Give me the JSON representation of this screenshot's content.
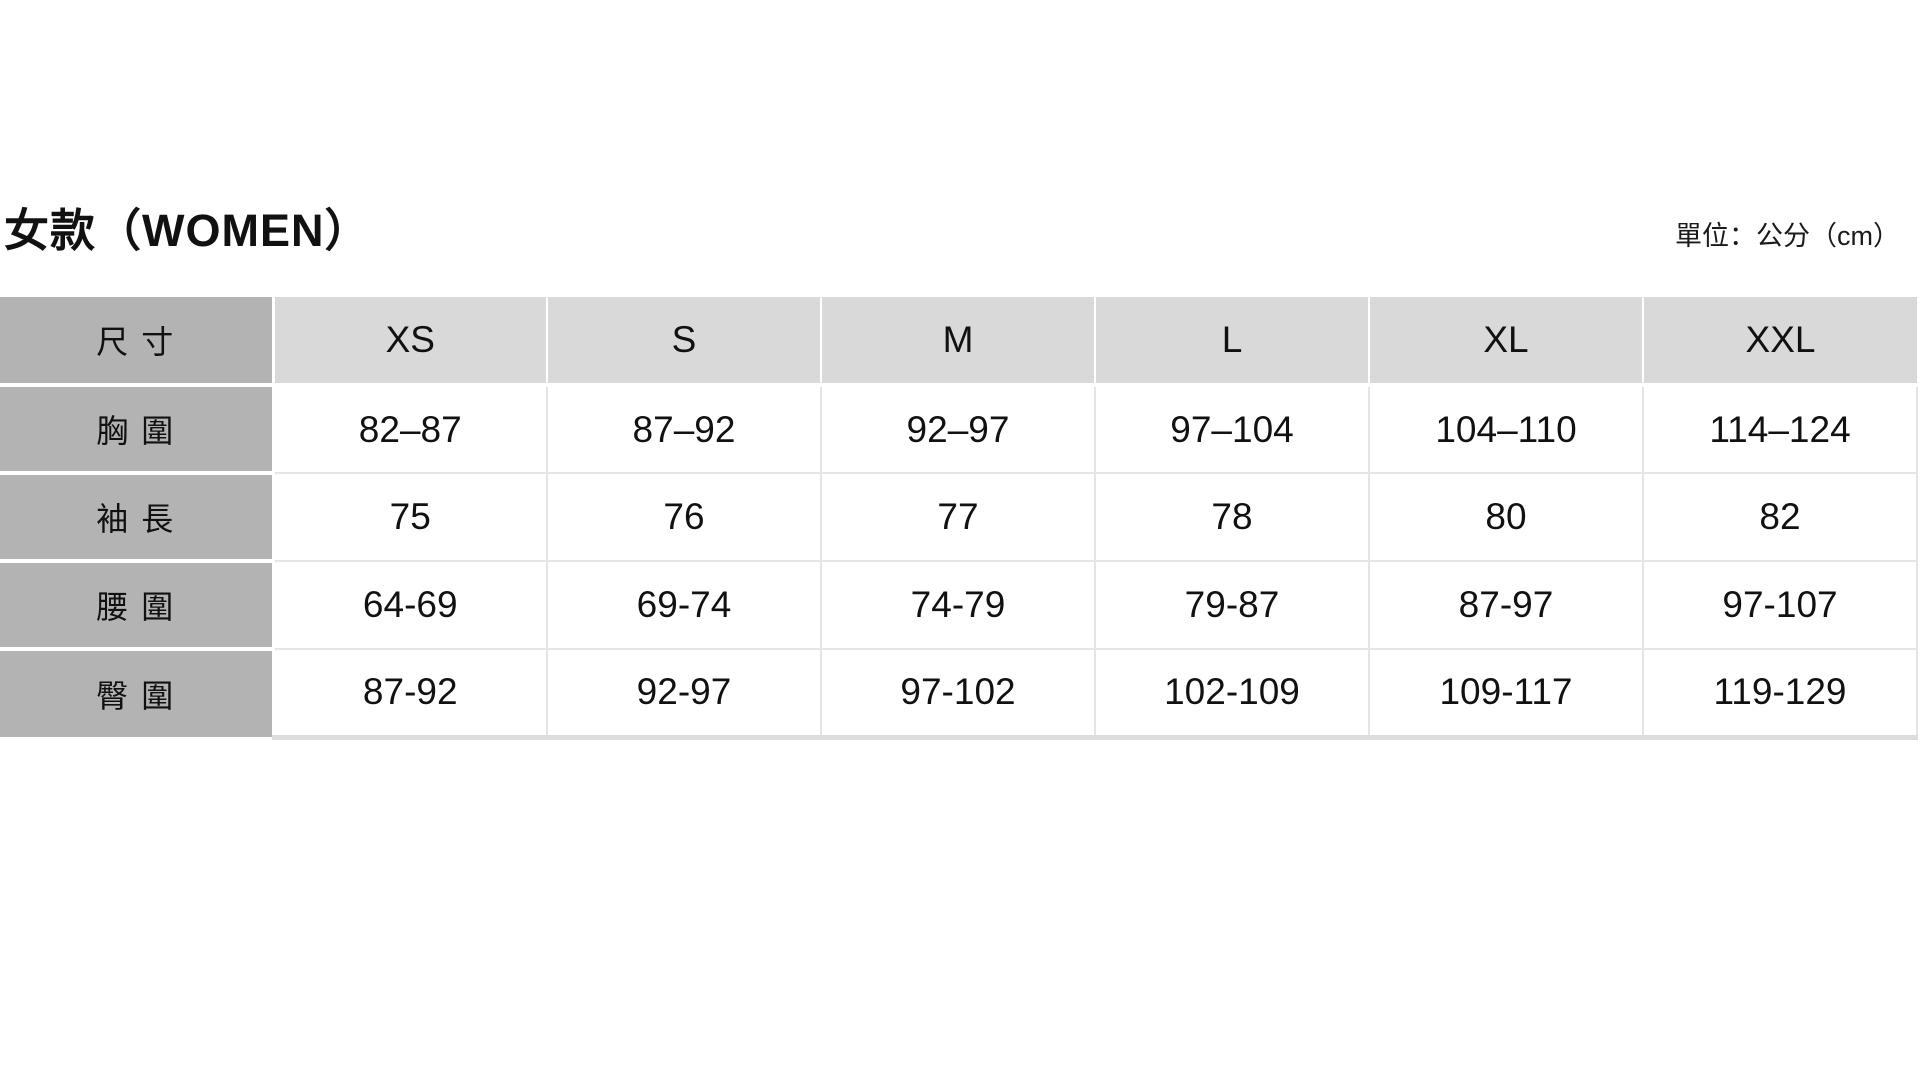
{
  "header": {
    "title": "女款（WOMEN）",
    "unit_note": "單位：公分（cm）"
  },
  "chart_data": {
    "type": "table",
    "title": "女款（WOMEN）",
    "unit_note": "單位：公分（cm）",
    "corner_label": "尺 寸",
    "columns": [
      "XS",
      "S",
      "M",
      "L",
      "XL",
      "XXL"
    ],
    "rows": [
      {
        "label": "胸 圍",
        "values": [
          "82–87",
          "87–92",
          "92–97",
          "97–104",
          "104–110",
          "114–124"
        ]
      },
      {
        "label": "袖 長",
        "values": [
          "75",
          "76",
          "77",
          "78",
          "80",
          "82"
        ]
      },
      {
        "label": "腰 圍",
        "values": [
          "64-69",
          "69-74",
          "74-79",
          "79-87",
          "87-97",
          "97-107"
        ]
      },
      {
        "label": "臀 圍",
        "values": [
          "87-92",
          "92-97",
          "97-102",
          "102-109",
          "109-117",
          "119-129"
        ]
      }
    ]
  },
  "colors": {
    "label_cell_bg": "#b3b3b3",
    "header_cell_bg": "#d9d9d9",
    "grid_line": "#e4e4e4",
    "bottom_bar": "#dcdcdc",
    "text": "#111111"
  }
}
